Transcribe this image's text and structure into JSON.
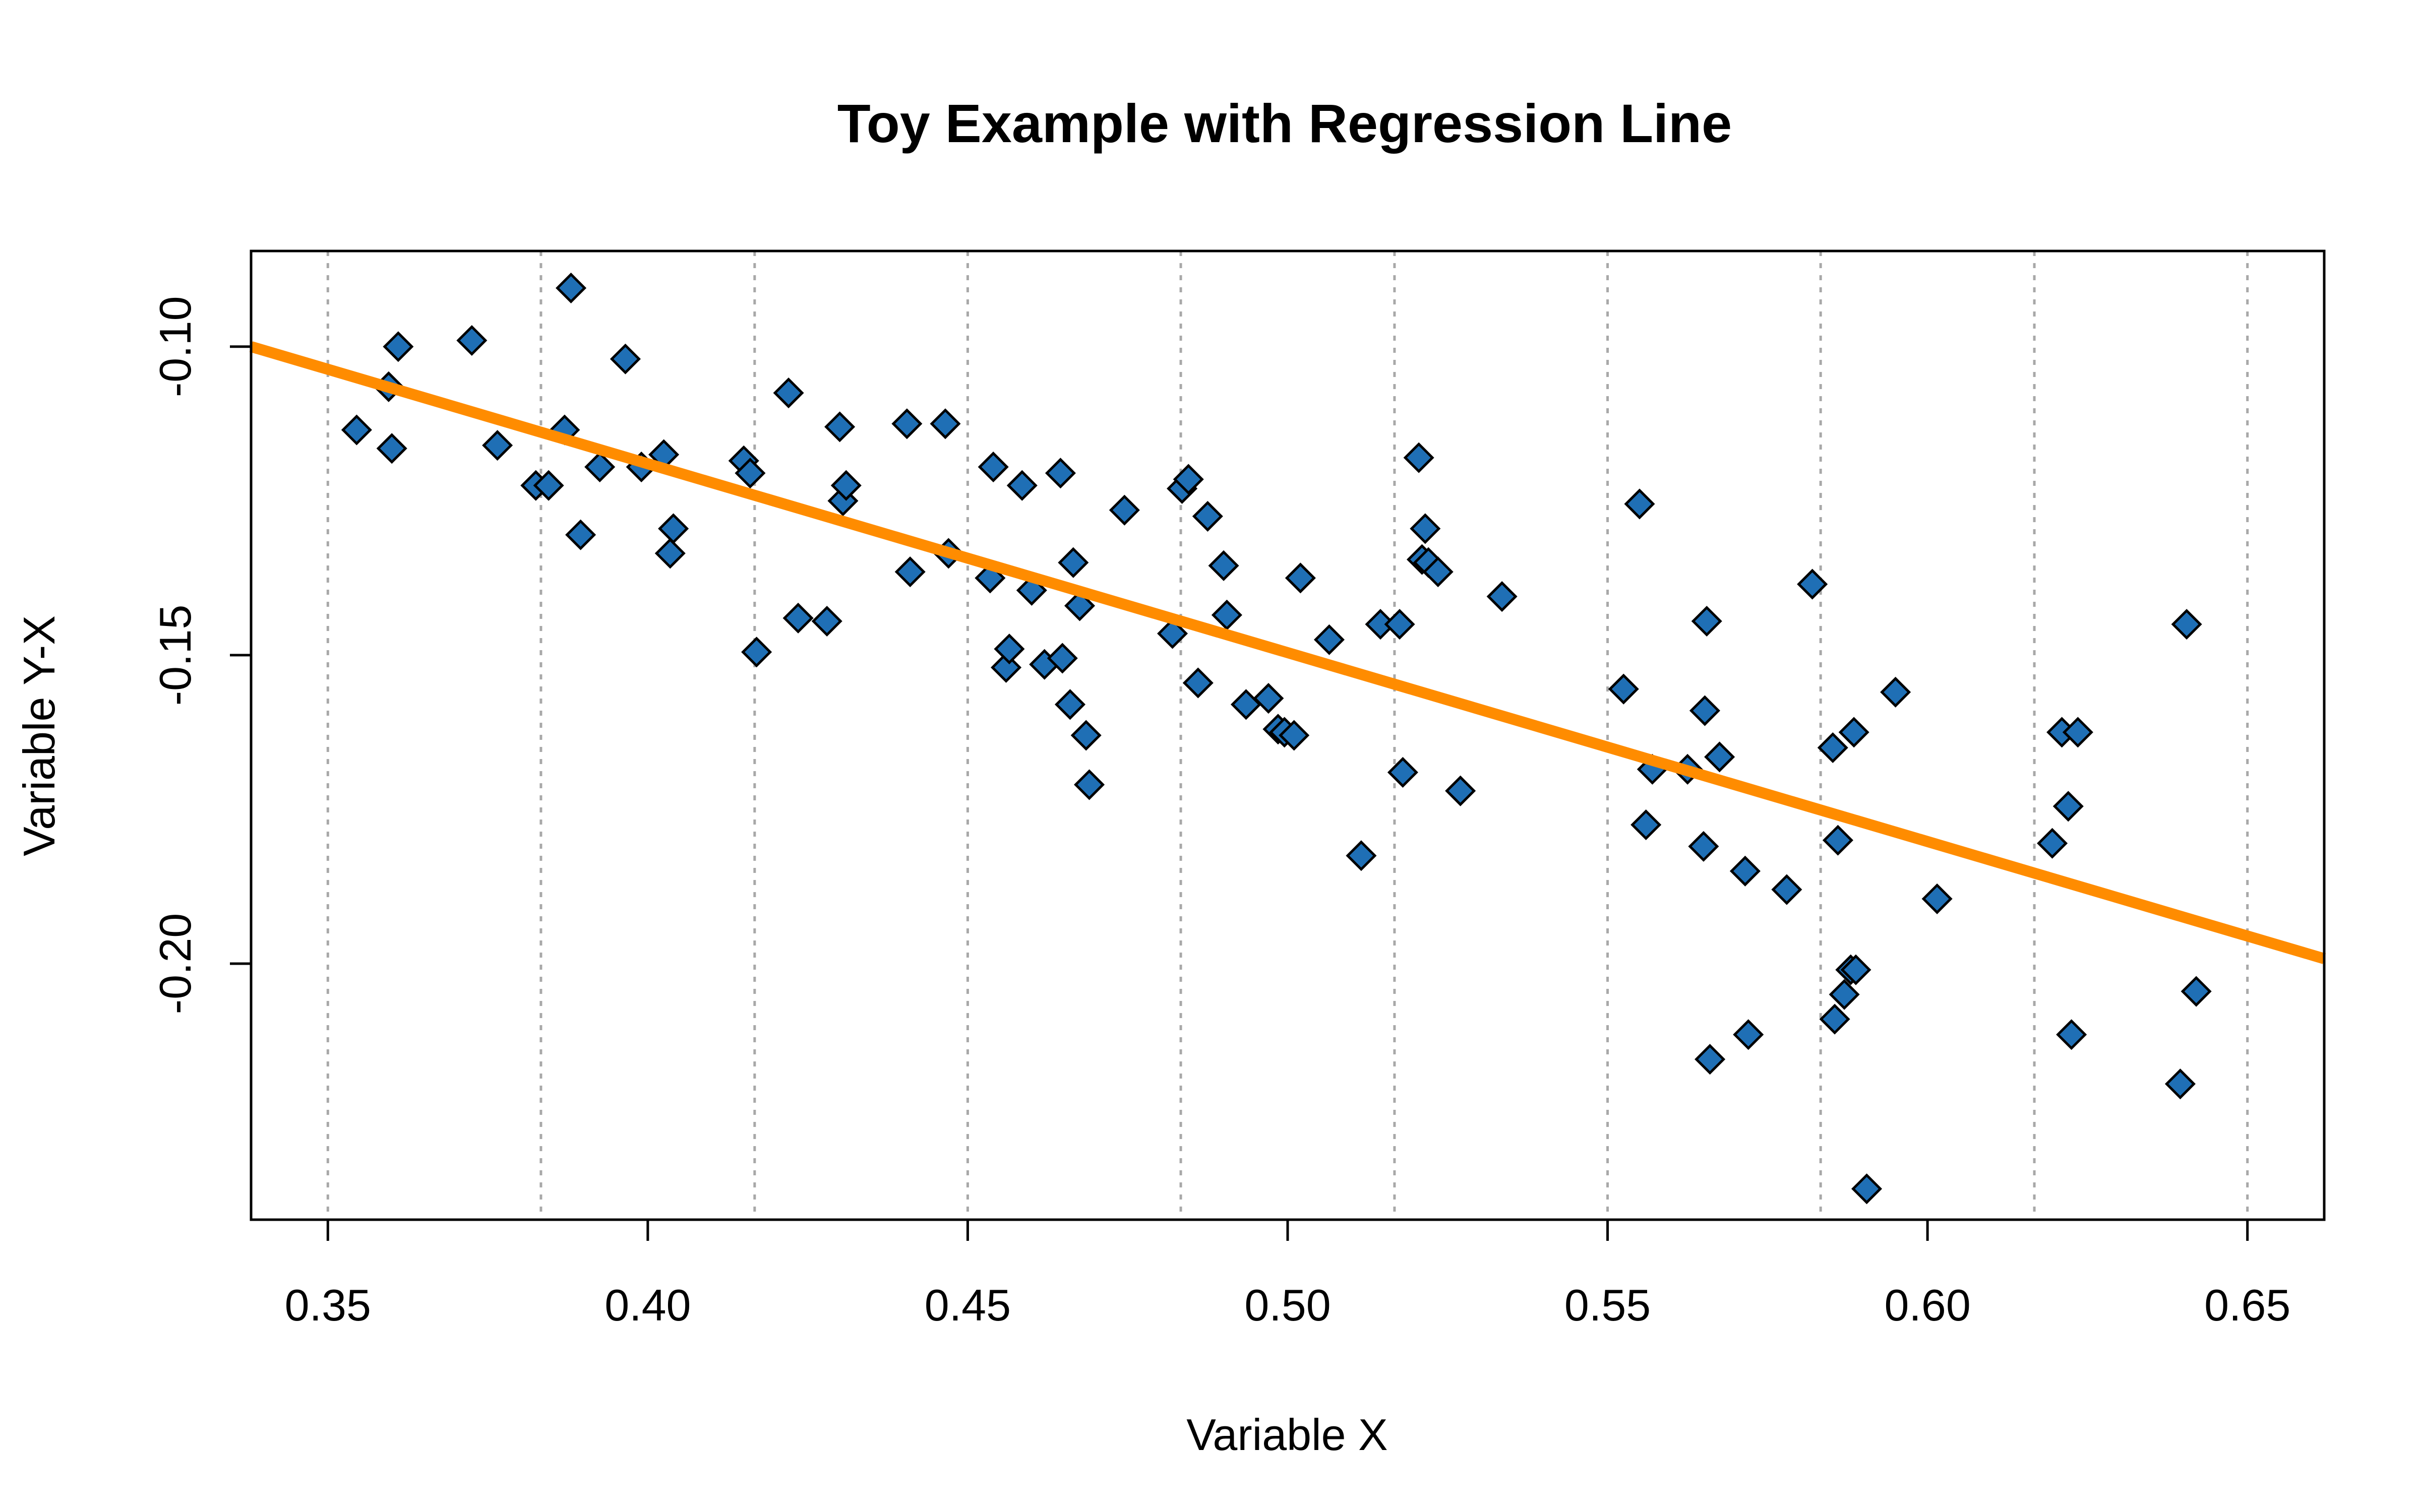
{
  "chart_data": {
    "type": "scatter",
    "title": "Toy Example with Regression Line",
    "xlabel": "Variable X",
    "ylabel": "Variable Y-X",
    "xlim": [
      0.338,
      0.662
    ],
    "ylim": [
      -0.2415,
      -0.0845
    ],
    "xticks": [
      0.35,
      0.4,
      0.45,
      0.5,
      0.55,
      0.6,
      0.65
    ],
    "xtick_labels": [
      "0.35",
      "0.40",
      "0.45",
      "0.50",
      "0.55",
      "0.60",
      "0.65"
    ],
    "yticks": [
      -0.1,
      -0.15,
      -0.2
    ],
    "ytick_labels": [
      "-0.10",
      "-0.15",
      "-0.20"
    ],
    "vertical_gridlines_x": [
      0.35,
      0.3833,
      0.4167,
      0.45,
      0.4833,
      0.5167,
      0.55,
      0.5833,
      0.6167,
      0.65
    ],
    "marker": "diamond",
    "marker_color": "#1f6fb5",
    "marker_edge_color": "#000000",
    "line_color": "#ff8c00",
    "regression_line": {
      "x": [
        0.338,
        0.662
      ],
      "y": [
        -0.1,
        -0.1992
      ]
    },
    "series": [
      {
        "name": "points",
        "x": [
          0.3545,
          0.3595,
          0.36,
          0.361,
          0.3725,
          0.3765,
          0.3825,
          0.3845,
          0.387,
          0.388,
          0.3895,
          0.3925,
          0.3965,
          0.399,
          0.4025,
          0.4035,
          0.404,
          0.415,
          0.416,
          0.417,
          0.422,
          0.4235,
          0.428,
          0.43,
          0.4305,
          0.431,
          0.4405,
          0.441,
          0.4465,
          0.447,
          0.4535,
          0.454,
          0.456,
          0.4565,
          0.4585,
          0.46,
          0.462,
          0.4645,
          0.4648,
          0.466,
          0.4665,
          0.4675,
          0.4685,
          0.469,
          0.4745,
          0.482,
          0.4835,
          0.4845,
          0.486,
          0.4875,
          0.49,
          0.4905,
          0.4935,
          0.497,
          0.4985,
          0.4995,
          0.501,
          0.502,
          0.5065,
          0.5115,
          0.5145,
          0.5175,
          0.518,
          0.5205,
          0.521,
          0.5215,
          0.522,
          0.5235,
          0.527,
          0.5335,
          0.5525,
          0.555,
          0.556,
          0.557,
          0.5625,
          0.565,
          0.5652,
          0.5655,
          0.566,
          0.5675,
          0.5715,
          0.572,
          0.578,
          0.582,
          0.5852,
          0.5855,
          0.586,
          0.587,
          0.588,
          0.5885,
          0.5888,
          0.5905,
          0.595,
          0.6015,
          0.6195,
          0.621,
          0.622,
          0.6225,
          0.6235,
          0.6395,
          0.6405,
          0.642
        ],
        "y": [
          -0.1135,
          -0.1065,
          -0.1165,
          -0.1,
          -0.099,
          -0.116,
          -0.1225,
          -0.1225,
          -0.1135,
          -0.0905,
          -0.1305,
          -0.1195,
          -0.102,
          -0.1195,
          -0.1175,
          -0.1335,
          -0.1295,
          -0.1185,
          -0.1205,
          -0.1495,
          -0.1075,
          -0.144,
          -0.1445,
          -0.113,
          -0.125,
          -0.1225,
          -0.1125,
          -0.1365,
          -0.1125,
          -0.1335,
          -0.1375,
          -0.1195,
          -0.152,
          -0.149,
          -0.1225,
          -0.1395,
          -0.1515,
          -0.1205,
          -0.1505,
          -0.158,
          -0.135,
          -0.142,
          -0.163,
          -0.171,
          -0.1265,
          -0.1465,
          -0.123,
          -0.1215,
          -0.1545,
          -0.1275,
          -0.1355,
          -0.1435,
          -0.158,
          -0.157,
          -0.162,
          -0.1625,
          -0.163,
          -0.1375,
          -0.1475,
          -0.1825,
          -0.145,
          -0.145,
          -0.169,
          -0.118,
          -0.1345,
          -0.1295,
          -0.135,
          -0.1365,
          -0.172,
          -0.1405,
          -0.1555,
          -0.1255,
          -0.1775,
          -0.1685,
          -0.1685,
          -0.181,
          -0.159,
          -0.1445,
          -0.2155,
          -0.1665,
          -0.185,
          -0.2115,
          -0.188,
          -0.1385,
          -0.165,
          -0.209,
          -0.18,
          -0.205,
          -0.201,
          -0.1625,
          -0.201,
          -0.2365,
          -0.156,
          -0.1895,
          -0.1805,
          -0.1625,
          -0.1745,
          -0.2115,
          -0.1625,
          -0.2195,
          -0.145,
          -0.2045
        ]
      }
    ]
  }
}
